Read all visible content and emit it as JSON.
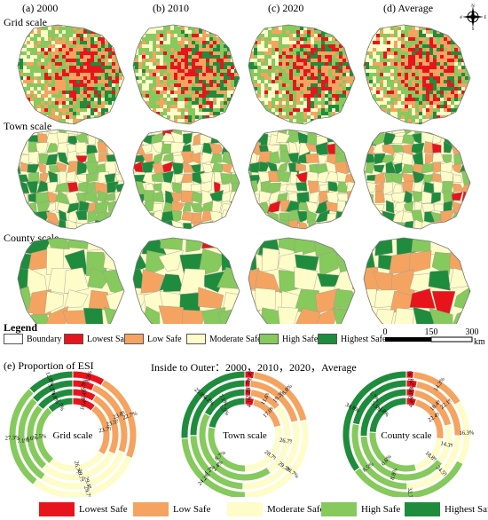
{
  "panels": [
    "(a) 2000",
    "(b) 2010",
    "(c) 2020",
    "(d) Average"
  ],
  "rows": [
    "Grid scale",
    "Town scale",
    "County scale"
  ],
  "compass": {
    "n": "N",
    "s": "S",
    "e": "E",
    "w": "W"
  },
  "legend": {
    "title": "Legend",
    "items": [
      {
        "label": "Boundary",
        "color": "#ffffff"
      },
      {
        "label": "Lowest Safe",
        "color": "#e8141c"
      },
      {
        "label": "Low Safe",
        "color": "#f4a460"
      },
      {
        "label": "Moderate Safe",
        "color": "#fefcc8"
      },
      {
        "label": "High Safe",
        "color": "#86c95c"
      },
      {
        "label": "Highest Safe",
        "color": "#1e8c3c"
      }
    ]
  },
  "scalebar": {
    "ticks": [
      "0",
      "150",
      "300"
    ],
    "unit": "km"
  },
  "section_e": {
    "title": "(e) Proportion of ESI",
    "subtitle": "Inside to Outer：2000，2010，2020，Average"
  },
  "chart_data": [
    {
      "type": "pie",
      "title": "Grid scale",
      "categories": [
        "Lowest Safe",
        "Low Safe",
        "Moderate Safe",
        "High Safe",
        "Highest Safe"
      ],
      "series": [
        {
          "name": "2000",
          "values": [
            10.4,
            23.7,
            26.7,
            27.5,
            11.7
          ]
        },
        {
          "name": "2010",
          "values": [
            8.4,
            23.5,
            29.7,
            24.6,
            13.8
          ]
        },
        {
          "name": "2020",
          "values": [
            6.5,
            23.8,
            29.4,
            27.1,
            13.2
          ]
        },
        {
          "name": "Average",
          "values": [
            8.3,
            22.7,
            29.7,
            27.3,
            12.0
          ]
        }
      ]
    },
    {
      "type": "pie",
      "title": "Town scale",
      "categories": [
        "Lowest Safe",
        "Low Safe",
        "Moderate Safe",
        "High Safe",
        "Highest Safe"
      ],
      "series": [
        {
          "name": "2000",
          "values": [
            4.1,
            17.0,
            28.7,
            28.7,
            21.5
          ]
        },
        {
          "name": "2010",
          "values": [
            2.2,
            11.6,
            26.7,
            42.4,
            17.1
          ]
        },
        {
          "name": "2020",
          "values": [
            1.7,
            19.2,
            29.7,
            24.2,
            25.2
          ]
        },
        {
          "name": "Average",
          "values": [
            2.4,
            18.8,
            28.7,
            24.2,
            25.9
          ]
        }
      ]
    },
    {
      "type": "pie",
      "title": "County scale",
      "categories": [
        "Lowest Safe",
        "Low Safe",
        "Moderate Safe",
        "High Safe",
        "Highest Safe"
      ],
      "series": [
        {
          "name": "2000",
          "values": [
            4.4,
            22.4,
            18.8,
            30.6,
            23.8
          ]
        },
        {
          "name": "2010",
          "values": [
            3.0,
            18.4,
            14.3,
            38.8,
            25.5
          ]
        },
        {
          "name": "2020",
          "values": [
            3.2,
            22.1,
            24.5,
            28.5,
            21.7
          ]
        },
        {
          "name": "Average",
          "values": [
            1.9,
            14.3,
            16.3,
            32.7,
            34.8
          ]
        }
      ]
    }
  ]
}
